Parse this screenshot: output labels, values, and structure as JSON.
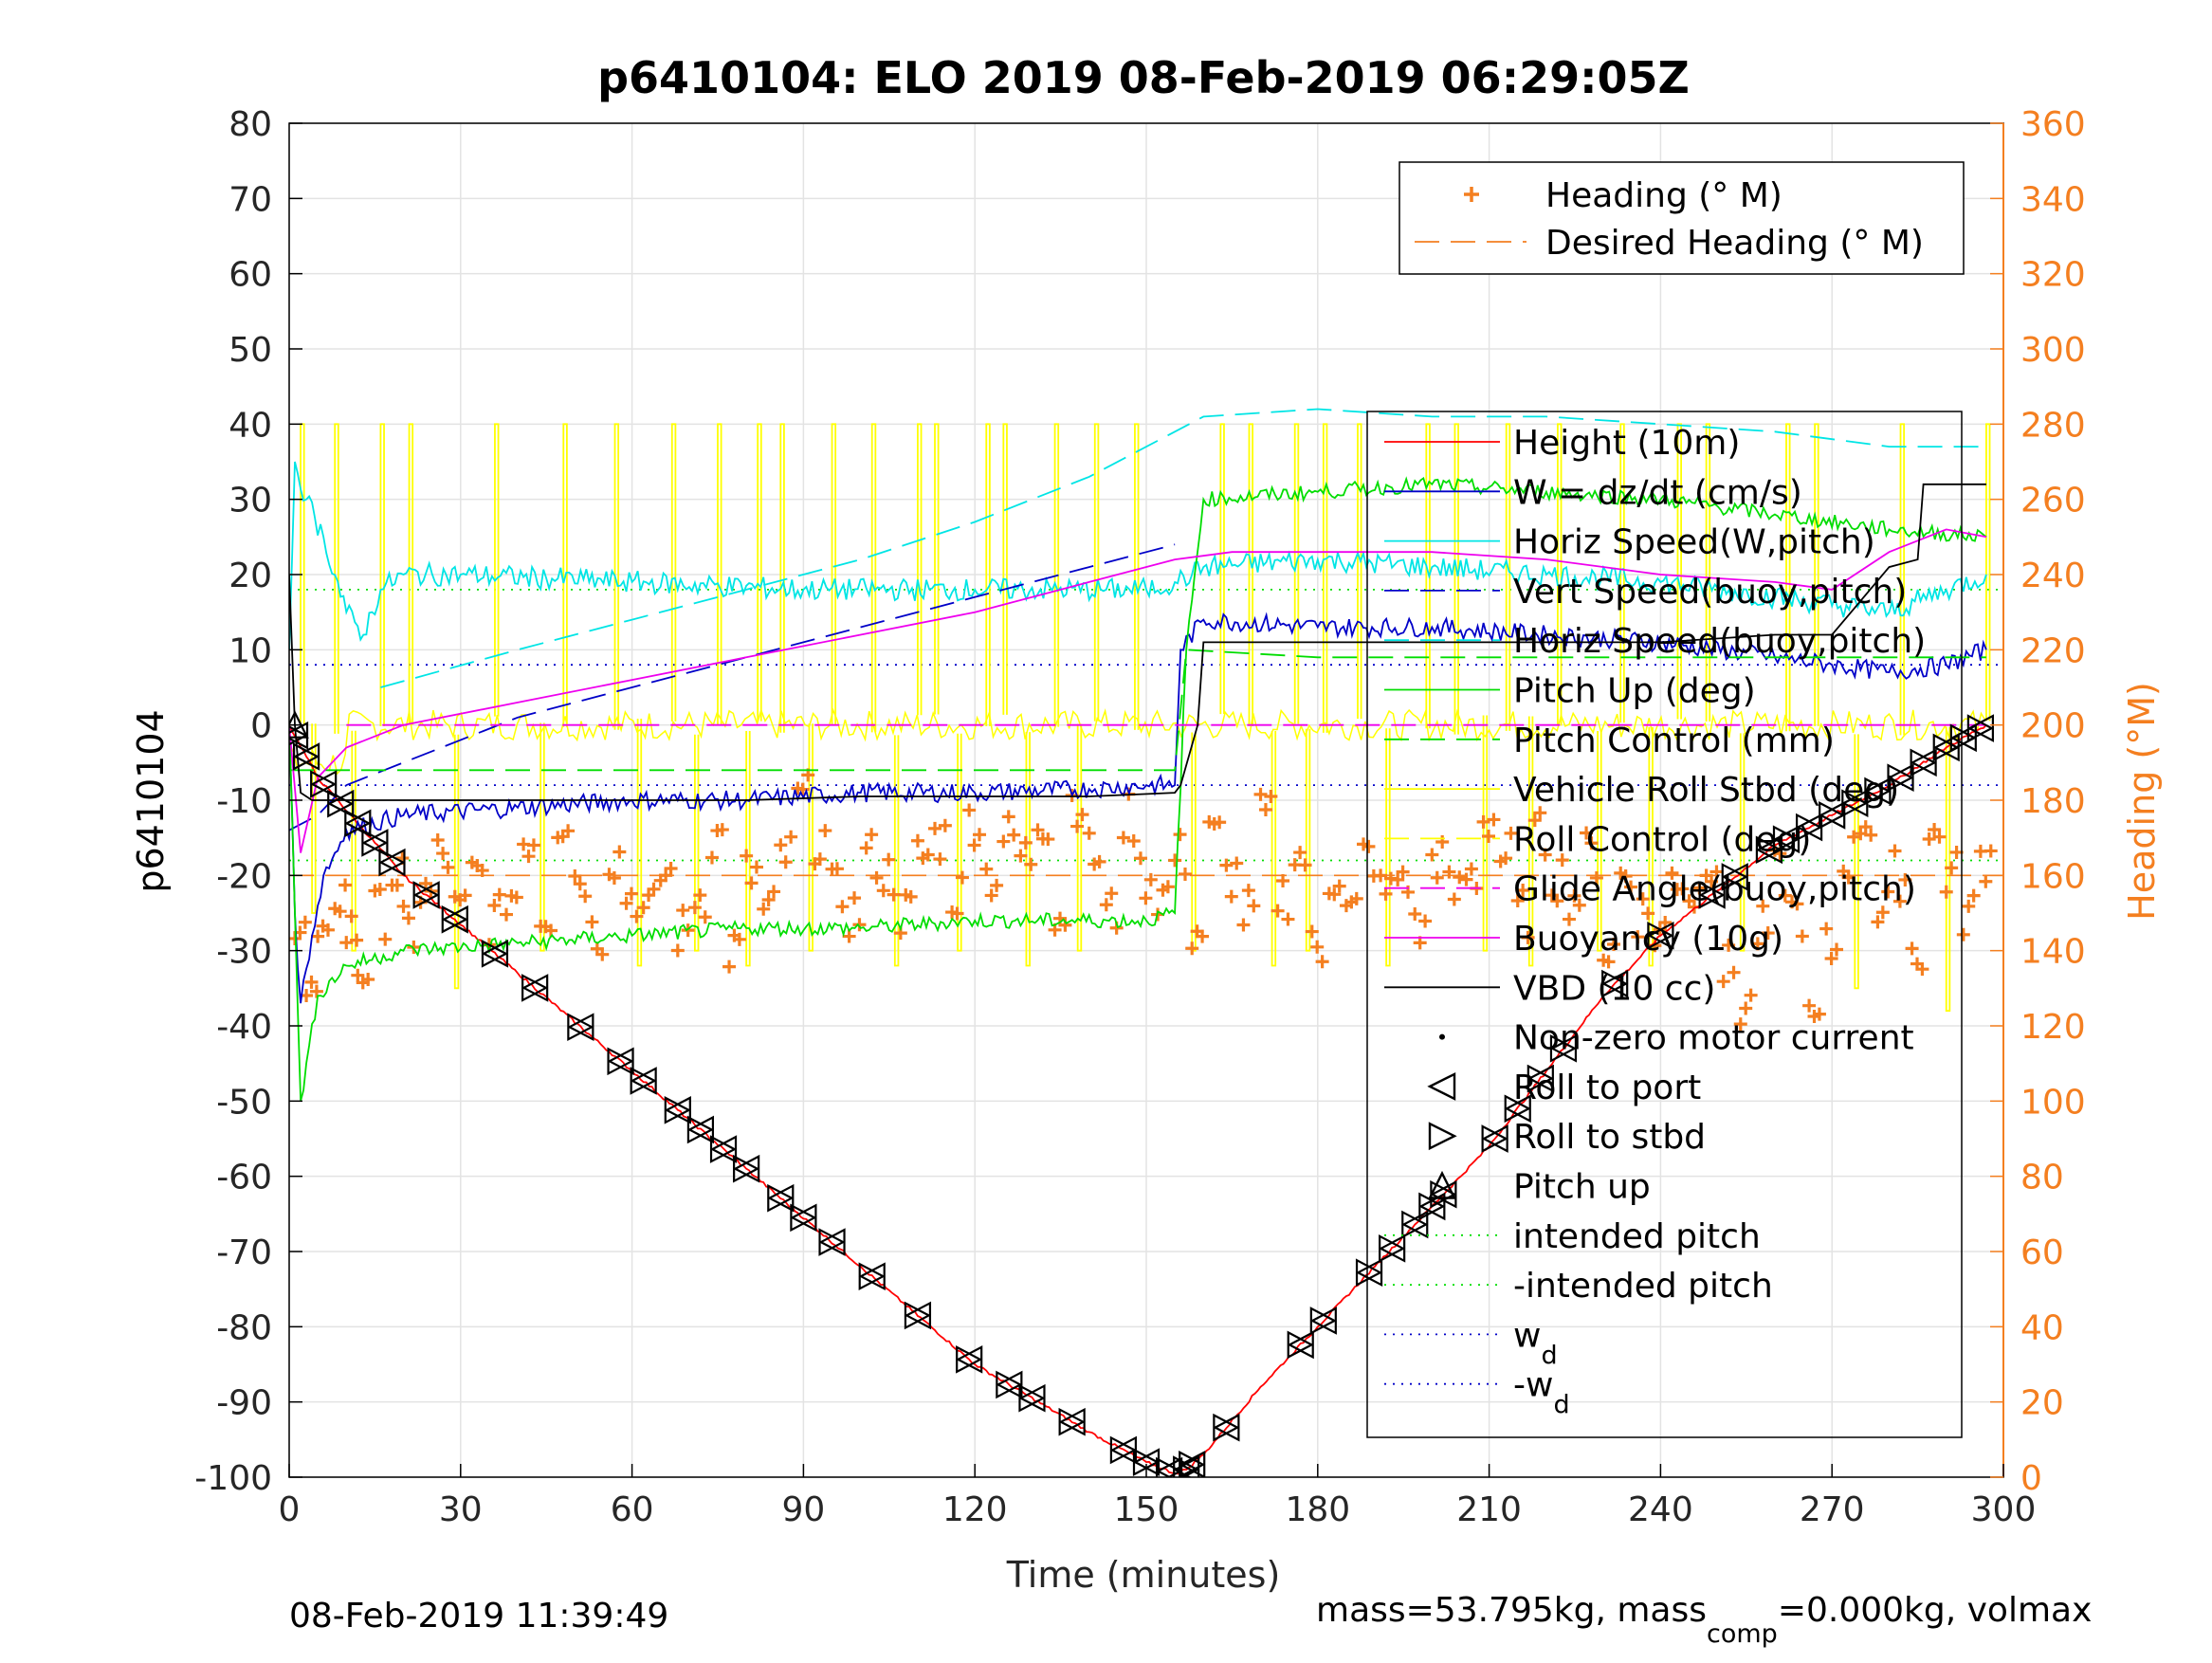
{
  "chart_data": {
    "type": "line",
    "title": "p6410104: ELO 2019 08-Feb-2019 06:29:05Z",
    "xlabel": "Time (minutes)",
    "ylabel": "p6410104",
    "ylabel_right": "Heading (°M)",
    "xlim": [
      0,
      300
    ],
    "ylim": [
      -100,
      80
    ],
    "ylim_right": [
      0,
      360
    ],
    "xticks": [
      "0",
      "30",
      "60",
      "90",
      "120",
      "150",
      "180",
      "210",
      "240",
      "270",
      "300"
    ],
    "yticks": [
      "80",
      "70",
      "60",
      "50",
      "40",
      "30",
      "20",
      "10",
      "0",
      "-10",
      "-20",
      "-30",
      "-40",
      "-50",
      "-60",
      "-70",
      "-80",
      "-90",
      "-100"
    ],
    "yticks_right": [
      "360",
      "340",
      "320",
      "300",
      "280",
      "260",
      "240",
      "220",
      "200",
      "180",
      "160",
      "140",
      "120",
      "100",
      "80",
      "60",
      "40",
      "20",
      "0"
    ],
    "grid": true,
    "footer_left": "08-Feb-2019 11:39:49",
    "footer_right": {
      "p1": "mass=53.795kg, mass",
      "sub": "comp",
      "p2": "=0.000kg, volmax"
    },
    "colors": {
      "accent_right": "#f47f20",
      "red": "#ff0000",
      "blue": "#0000c8",
      "cyan": "#00e5e5",
      "green": "#00dd00",
      "yellow": "#ffff00",
      "magenta": "#ee00ee",
      "black": "#000000"
    },
    "legend_top": {
      "placement": "top-right",
      "entries": [
        {
          "label": "Heading (° M)",
          "style": "plus",
          "color": "#f47f20"
        },
        {
          "label": "Desired Heading (° M)",
          "style": "dash",
          "color": "#f47f20"
        }
      ]
    },
    "legend_main": {
      "placement": "right",
      "entries": [
        {
          "label": "Height (10m)",
          "style": "line",
          "color": "#ff0000"
        },
        {
          "label": "W = dz/dt (cm/s)",
          "style": "line",
          "color": "#0000c8"
        },
        {
          "label": "Horiz Speed(W,pitch)",
          "style": "line",
          "color": "#00e5e5"
        },
        {
          "label": "Vert Speed(buoy,pitch)",
          "style": "dash",
          "color": "#0000c8"
        },
        {
          "label": "Horiz Speed(buoy,pitch)",
          "style": "dash",
          "color": "#00e5e5"
        },
        {
          "label": "Pitch Up (deg)",
          "style": "line",
          "color": "#00dd00"
        },
        {
          "label": "Pitch Control (mm)",
          "style": "dash",
          "color": "#00dd00"
        },
        {
          "label": "Vehicle Roll Stbd (deg)",
          "style": "line",
          "color": "#ffff00"
        },
        {
          "label": "Roll Control (deg)",
          "style": "dash",
          "color": "#ffff00"
        },
        {
          "label": "Glide Angle(buoy,pitch)",
          "style": "dash",
          "color": "#ee00ee"
        },
        {
          "label": "Buoyancy (10g)",
          "style": "line",
          "color": "#ee00ee"
        },
        {
          "label": "VBD (10 cc)",
          "style": "line",
          "color": "#000000"
        },
        {
          "label": "Non-zero motor current",
          "style": "dot",
          "color": "#000000"
        },
        {
          "label": "Roll to port",
          "style": "tri-left",
          "color": "#000000"
        },
        {
          "label": "Roll to stbd",
          "style": "tri-right",
          "color": "#000000"
        },
        {
          "label": "Pitch up",
          "style": "tri-up",
          "color": "#000000"
        },
        {
          "label": "intended pitch",
          "style": "dot-line",
          "color": "#00dd00"
        },
        {
          "label": "-intended pitch",
          "style": "dot-line",
          "color": "#00dd00"
        },
        {
          "label": "w",
          "sub": "d",
          "style": "dot-line",
          "color": "#0000c8"
        },
        {
          "label": "-w",
          "sub": "d",
          "style": "dot-line",
          "color": "#0000c8"
        }
      ]
    },
    "series": [
      {
        "name": "Height (10m)",
        "color": "#ff0000",
        "x": [
          0,
          5,
          20,
          40,
          60,
          80,
          100,
          120,
          140,
          150,
          155,
          157,
          160,
          170,
          180,
          190,
          200,
          210,
          220,
          230,
          240,
          250,
          260,
          270,
          280,
          290,
          297
        ],
        "y": [
          0,
          -7,
          -20,
          -33,
          -46,
          -59,
          -72,
          -85,
          -94,
          -98,
          -99.5,
          -99,
          -97,
          -88,
          -80,
          -72,
          -64,
          -56,
          -46,
          -36,
          -28,
          -22,
          -16,
          -12,
          -8,
          -3,
          0
        ]
      },
      {
        "name": "W = dz/dt (cm/s)",
        "color": "#0000c8",
        "x": [
          0,
          1,
          2,
          4,
          6,
          10,
          20,
          40,
          60,
          80,
          100,
          120,
          140,
          150,
          155,
          156,
          160,
          180,
          200,
          220,
          240,
          260,
          270,
          280,
          290,
          297
        ],
        "y": [
          0,
          -25,
          -37,
          -28,
          -20,
          -14,
          -12,
          -11,
          -10,
          -10,
          -9,
          -9,
          -8.5,
          -8,
          -8,
          10,
          14,
          13,
          13,
          12,
          11,
          9,
          8,
          7,
          8,
          10
        ]
      },
      {
        "name": "Horiz Speed(W,pitch)",
        "color": "#00e5e5",
        "x": [
          0,
          1,
          3,
          6,
          10,
          13,
          16,
          20,
          30,
          60,
          90,
          120,
          150,
          155,
          158,
          160,
          180,
          200,
          220,
          240,
          260,
          280,
          290,
          297
        ],
        "y": [
          10,
          35,
          30,
          25,
          15,
          12,
          18,
          20,
          20,
          19,
          18,
          18,
          18,
          19,
          20,
          21,
          22,
          21,
          20,
          19,
          17,
          15,
          18,
          20
        ]
      },
      {
        "name": "Vert Speed(buoy,pitch)",
        "color": "#0000c8",
        "dashed": true,
        "x": [
          0,
          5,
          10,
          20,
          40,
          60,
          80,
          100,
          120,
          140,
          155
        ],
        "y": [
          -14,
          -12,
          -8,
          -5,
          1,
          5,
          9,
          13,
          17,
          21,
          24
        ]
      },
      {
        "name": "Horiz Speed(buoy,pitch)",
        "color": "#00e5e5",
        "dashed": true,
        "x": [
          16,
          40,
          60,
          80,
          100,
          120,
          140,
          160,
          180,
          200,
          220,
          240,
          260,
          280,
          297
        ],
        "y": [
          5,
          10,
          14,
          18,
          22,
          27,
          33,
          41,
          42,
          41,
          41,
          40,
          39,
          37,
          37
        ]
      },
      {
        "name": "Pitch Up (deg)",
        "color": "#00dd00",
        "x": [
          0,
          2,
          5,
          10,
          20,
          40,
          60,
          80,
          100,
          120,
          150,
          155,
          157,
          160,
          180,
          200,
          220,
          240,
          260,
          280,
          297
        ],
        "y": [
          0,
          -50,
          -36,
          -32,
          -30,
          -29,
          -28,
          -27,
          -27,
          -26,
          -26,
          -25,
          10,
          30,
          31,
          32,
          31,
          30,
          28,
          26,
          25
        ]
      },
      {
        "name": "Pitch Control (mm)",
        "color": "#00dd00",
        "dashed": true,
        "x": [
          0,
          5,
          20,
          60,
          100,
          155,
          157,
          180,
          220,
          260,
          297
        ],
        "y": [
          -6,
          -6,
          -6,
          -6,
          -6,
          -6,
          10,
          9,
          9,
          9,
          9
        ]
      },
      {
        "name": "Buoyancy (10g)",
        "color": "#ee00ee",
        "x": [
          0,
          2,
          5,
          10,
          20,
          40,
          60,
          80,
          100,
          120,
          140,
          155,
          165,
          180,
          200,
          220,
          240,
          260,
          270,
          280,
          290,
          297
        ],
        "y": [
          0,
          -17,
          -7,
          -3,
          0,
          3,
          6,
          9,
          12,
          15,
          19,
          22,
          23,
          23,
          23,
          22,
          20,
          19,
          18,
          23,
          26,
          25
        ]
      },
      {
        "name": "Glide Angle(buoy,pitch)",
        "color": "#ee00ee",
        "dashed": true,
        "x": [
          10,
          60,
          100,
          150,
          200,
          250,
          297
        ],
        "y": [
          0,
          0,
          0,
          0,
          0,
          0,
          0
        ]
      },
      {
        "name": "VBD (10 cc)",
        "color": "#000000",
        "x": [
          0,
          1,
          2,
          4,
          8,
          20,
          40,
          60,
          80,
          100,
          120,
          140,
          155,
          156,
          159,
          160,
          180,
          200,
          220,
          240,
          260,
          270,
          280,
          285,
          286,
          297
        ],
        "y": [
          20,
          0,
          -9,
          -10,
          -10,
          -10,
          -10,
          -10,
          -10,
          -9.5,
          -9.5,
          -9.5,
          -9,
          -8,
          0,
          11,
          11,
          11,
          11,
          11,
          12,
          12,
          21,
          22,
          32,
          32
        ]
      },
      {
        "name": "intended pitch",
        "color": "#00dd00",
        "dotted": true,
        "x": [
          0,
          300
        ],
        "y": [
          18,
          18
        ]
      },
      {
        "name": "-intended pitch",
        "color": "#00dd00",
        "dotted": true,
        "x": [
          0,
          300
        ],
        "y": [
          -18,
          -18
        ]
      },
      {
        "name": "w_d",
        "color": "#0000c8",
        "dotted": true,
        "x": [
          0,
          300
        ],
        "y": [
          8,
          8
        ]
      },
      {
        "name": "-w_d",
        "color": "#0000c8",
        "dotted": true,
        "x": [
          0,
          300
        ],
        "y": [
          -8,
          -8
        ]
      }
    ],
    "roll_spikes": {
      "name": "Vehicle Roll Stbd (deg)",
      "color": "#ffff00",
      "x": [
        2,
        4,
        8,
        11,
        16,
        21,
        29,
        36,
        44,
        48,
        57,
        61,
        67,
        71,
        75,
        80,
        82,
        86,
        91,
        95,
        102,
        106,
        110,
        113,
        117,
        122,
        125,
        129,
        134,
        138,
        141,
        148,
        158,
        163,
        168,
        172,
        176,
        178,
        181,
        187,
        192,
        199,
        204,
        209,
        213,
        217,
        222,
        229,
        233,
        238,
        243,
        248,
        254,
        262,
        267,
        274,
        282,
        290,
        297
      ],
      "peak": [
        40,
        -25,
        40,
        -30,
        40,
        40,
        -35,
        40,
        -30,
        40,
        40,
        -32,
        40,
        -30,
        40,
        -32,
        40,
        40,
        -30,
        40,
        40,
        -32,
        40,
        40,
        -30,
        40,
        40,
        -32,
        40,
        -30,
        40,
        40,
        -30,
        40,
        40,
        -32,
        40,
        -30,
        40,
        40,
        -32,
        40,
        40,
        -30,
        40,
        -32,
        40,
        -30,
        40,
        -32,
        40,
        40,
        -30,
        40,
        40,
        -35,
        40,
        -38,
        40
      ]
    },
    "heading": {
      "name": "Heading (° M)",
      "color": "#f47f20",
      "x": [
        1,
        3,
        5,
        8,
        10,
        12,
        15,
        18,
        20,
        23,
        26,
        29,
        32,
        35,
        38,
        41,
        44,
        47,
        50,
        53,
        56,
        59,
        62,
        65,
        68,
        71,
        74,
        77,
        80,
        83,
        86,
        89,
        92,
        95,
        98,
        101,
        104,
        107,
        110,
        113,
        116,
        119,
        122,
        125,
        128,
        131,
        134,
        137,
        140,
        143,
        146,
        149,
        152,
        155,
        158,
        161,
        164,
        167,
        170,
        173,
        176,
        179,
        182,
        185,
        188,
        191,
        194,
        197,
        200,
        203,
        206,
        209,
        212,
        215,
        218,
        221,
        224,
        227,
        230,
        233,
        236,
        239,
        242,
        245,
        248,
        251,
        254,
        257,
        260,
        263,
        266,
        269,
        272,
        275,
        278,
        281,
        284,
        287,
        290,
        293,
        296
      ],
      "y": [
        150,
        128,
        140,
        155,
        145,
        135,
        150,
        160,
        145,
        155,
        165,
        150,
        160,
        148,
        155,
        170,
        150,
        175,
        160,
        145,
        165,
        155,
        150,
        160,
        145,
        155,
        170,
        140,
        160,
        150,
        165,
        180,
        170,
        155,
        150,
        165,
        160,
        150,
        165,
        170,
        155,
        175,
        160,
        170,
        165,
        175,
        150,
        180,
        165,
        150,
        175,
        160,
        155,
        165,
        145,
        170,
        160,
        150,
        175,
        155,
        165,
        140,
        160,
        150,
        165,
        155,
        160,
        145,
        165,
        155,
        160,
        175,
        165,
        150,
        170,
        160,
        155,
        165,
        140,
        160,
        150,
        145,
        160,
        155,
        165,
        135,
        125,
        145,
        160,
        150,
        120,
        140,
        165,
        175,
        150,
        160,
        140,
        170,
        160,
        150,
        165
      ]
    },
    "desired_heading": {
      "name": "Desired Heading (° M)",
      "color": "#f47f20",
      "x": [
        0,
        300
      ],
      "y": [
        160,
        160
      ]
    },
    "markers": {
      "x": [
        1,
        3,
        6,
        9,
        12,
        15,
        18,
        24,
        29,
        36,
        43,
        51,
        58,
        62,
        68,
        72,
        76,
        80,
        86,
        90,
        95,
        102,
        110,
        119,
        126,
        130,
        137,
        146,
        150,
        154,
        157,
        158,
        164,
        177,
        181,
        189,
        193,
        197,
        200,
        202,
        211,
        215,
        219,
        223,
        232,
        240,
        249,
        253,
        259,
        262,
        266,
        270,
        274,
        278,
        282,
        286,
        290,
        293,
        296
      ]
    }
  }
}
